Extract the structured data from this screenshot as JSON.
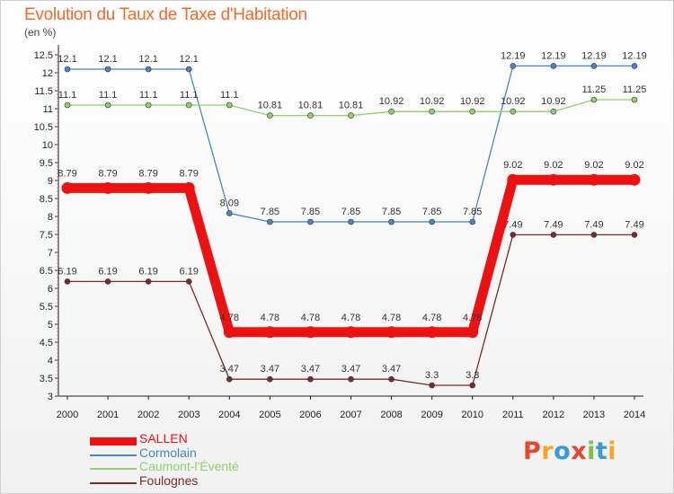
{
  "header": {
    "title": "Evolution du Taux de Taxe d'Habitation",
    "unit": "(en %)"
  },
  "chart_data": {
    "type": "line",
    "title": "Evolution du Taux de Taxe d'Habitation",
    "ylabel": "(en %)",
    "xlabel": "",
    "ylim": [
      3,
      12.5
    ],
    "yticks": [
      3,
      3.5,
      4,
      4.5,
      5,
      5.5,
      6,
      6.5,
      7,
      7.5,
      8,
      8.5,
      9,
      9.5,
      10,
      10.5,
      11,
      11.5,
      12,
      12.5
    ],
    "grid": false,
    "legend_position": "bottom-left",
    "x": [
      "2000",
      "2001",
      "2002",
      "2003",
      "2004",
      "2005",
      "2006",
      "2007",
      "2008",
      "2009",
      "2010",
      "2011",
      "2012",
      "2013",
      "2014"
    ],
    "series": [
      {
        "name": "SALLEN",
        "color": "#ee1111",
        "values": [
          8.79,
          8.79,
          8.79,
          8.79,
          4.78,
          4.78,
          4.78,
          4.78,
          4.78,
          4.78,
          4.78,
          9.02,
          9.02,
          9.02,
          9.02
        ]
      },
      {
        "name": "Cormolain",
        "color": "#4a86c5",
        "values": [
          12.1,
          12.1,
          12.1,
          12.1,
          8.09,
          7.85,
          7.85,
          7.85,
          7.85,
          7.85,
          7.85,
          12.19,
          12.19,
          12.19,
          12.19
        ]
      },
      {
        "name": "Caumont-l'Éventé",
        "color": "#8fd16a",
        "values": [
          11.1,
          11.1,
          11.1,
          11.1,
          11.1,
          10.81,
          10.81,
          10.81,
          10.92,
          10.92,
          10.92,
          10.92,
          10.92,
          11.25,
          11.25
        ]
      },
      {
        "name": "Foulognes",
        "color": "#7a2c2c",
        "values": [
          6.19,
          6.19,
          6.19,
          6.19,
          3.47,
          3.47,
          3.47,
          3.47,
          3.47,
          3.3,
          3.3,
          7.49,
          7.49,
          7.49,
          7.49
        ]
      }
    ]
  },
  "logo": {
    "text": "Proxiti",
    "colors": [
      "#e8452c",
      "#f5a623",
      "#3a9ad9",
      "#e8452c",
      "#7cc04b",
      "#3a9ad9",
      "#f5a623"
    ]
  }
}
